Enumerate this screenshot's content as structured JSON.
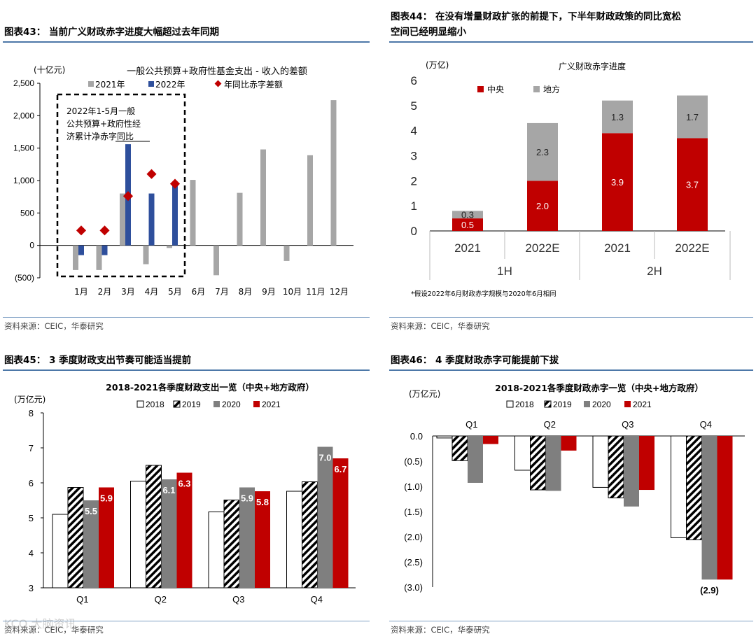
{
  "panels": {
    "p43": {
      "title": "图表43：  当前广义财政赤字进度大幅超过去年同期",
      "source": "资料来源：CEIC，华泰研究"
    },
    "p44": {
      "title_line1": "图表44：   在没有增量财政扩张的前提下，下半年财政政策的同比宽松",
      "title_line2": "空间已经明显缩小",
      "source": "资料来源：CEIC，华泰研究"
    },
    "p45": {
      "title": "图表45：  3 季度财政支出节奏可能适当提前",
      "source": "资料来源：CEIC，华泰研究"
    },
    "p46": {
      "title": "图表46：  4 季度财政赤字可能提前下拔",
      "source": "资料来源：CEIC，华泰研究"
    }
  },
  "watermark": "KCO 大脑资讯",
  "colors": {
    "gray": "#a6a6a6",
    "blue": "#2e4f9c",
    "red": "#c00000",
    "rule": "#4d78a8",
    "darkgray": "#7f7f7f"
  },
  "chart_data": [
    {
      "id": "c43",
      "type": "bar",
      "title": "一般公共预算+政府性基金支出 - 收入的差额",
      "unit": "(十亿元)",
      "categories": [
        "1月",
        "2月",
        "3月",
        "4月",
        "5月",
        "6月",
        "7月",
        "8月",
        "9月",
        "10月",
        "11月",
        "12月"
      ],
      "series": [
        {
          "name": "2021年",
          "kind": "bar",
          "values": [
            -380,
            -380,
            800,
            -290,
            -40,
            1010,
            -460,
            810,
            1480,
            -240,
            1390,
            2240
          ]
        },
        {
          "name": "2022年",
          "kind": "bar",
          "values": [
            -150,
            -150,
            1560,
            800,
            930,
            null,
            null,
            null,
            null,
            null,
            null,
            null
          ]
        },
        {
          "name": "年同比赤字差额",
          "kind": "marker",
          "values": [
            230,
            230,
            760,
            1100,
            950,
            null,
            null,
            null,
            null,
            null,
            null,
            null
          ]
        }
      ],
      "ylim": [
        -500,
        2500
      ],
      "yticks": [
        "(500)",
        "0",
        "500",
        "1,000",
        "1,500",
        "2,000",
        "2,500"
      ],
      "annotation_lines": [
        "2022年1-5月一般",
        "公共预算+政府性经",
        "济累计净赤字同比"
      ]
    },
    {
      "id": "c44",
      "type": "bar",
      "stacked": true,
      "title": "广义财政赤字进度",
      "unit": "(万亿)",
      "categories": [
        "2021",
        "2022E",
        "2021",
        "2022E"
      ],
      "groups": [
        "1H",
        "2H"
      ],
      "series": [
        {
          "name": "中央",
          "values": [
            0.5,
            2.0,
            3.9,
            3.7
          ],
          "labels": [
            "0.5",
            "2.0",
            "3.9",
            "3.7"
          ]
        },
        {
          "name": "地方",
          "values": [
            0.3,
            2.3,
            1.3,
            1.7
          ],
          "labels": [
            "0.3",
            "2.3",
            "1.3",
            "1.7"
          ]
        }
      ],
      "ylim": [
        0,
        6
      ],
      "yticks": [
        "0",
        "1",
        "2",
        "3",
        "4",
        "5",
        "6"
      ],
      "footnote": "*假设2022年6月财政赤字规模与2020年6月相同"
    },
    {
      "id": "c45",
      "type": "bar",
      "title": "2018-2021各季度财政支出一览（中央+地方政府）",
      "unit": "(万亿元)",
      "categories": [
        "Q1",
        "Q2",
        "Q3",
        "Q4"
      ],
      "series": [
        {
          "name": "2018",
          "values": [
            5.1,
            6.05,
            5.17,
            5.76
          ]
        },
        {
          "name": "2019",
          "values": [
            5.87,
            6.5,
            5.51,
            6.03
          ]
        },
        {
          "name": "2020",
          "values": [
            5.5,
            6.1,
            5.87,
            7.03
          ]
        },
        {
          "name": "2021",
          "values": [
            5.87,
            6.29,
            5.76,
            6.7
          ]
        }
      ],
      "data_labels": {
        "2020": [
          "5.5",
          "6.1",
          "5.9",
          "7.0"
        ],
        "2021": [
          "5.9",
          "6.3",
          "5.8",
          "6.7"
        ]
      },
      "ylim": [
        3,
        8
      ],
      "yticks": [
        "3",
        "4",
        "5",
        "6",
        "7",
        "8"
      ]
    },
    {
      "id": "c46",
      "type": "bar",
      "title": "2018-2021各季度财政赤字一览（中央+地方政府）",
      "unit": "(万亿元)",
      "categories": [
        "Q1",
        "Q2",
        "Q3",
        "Q4"
      ],
      "series": [
        {
          "name": "2018",
          "values": [
            -0.04,
            -0.68,
            -1.02,
            -2.02
          ]
        },
        {
          "name": "2019",
          "values": [
            -0.49,
            -1.07,
            -1.23,
            -2.06
          ]
        },
        {
          "name": "2020",
          "values": [
            -0.93,
            -1.09,
            -1.4,
            -2.85
          ]
        },
        {
          "name": "2021",
          "values": [
            -0.16,
            -0.29,
            -1.07,
            -2.85
          ]
        }
      ],
      "data_label": "(2.9)",
      "ylim": [
        -3.0,
        0.0
      ],
      "yticks": [
        "0.0",
        "(0.5)",
        "(1.0)",
        "(1.5)",
        "(2.0)",
        "(2.5)",
        "(3.0)"
      ]
    }
  ]
}
